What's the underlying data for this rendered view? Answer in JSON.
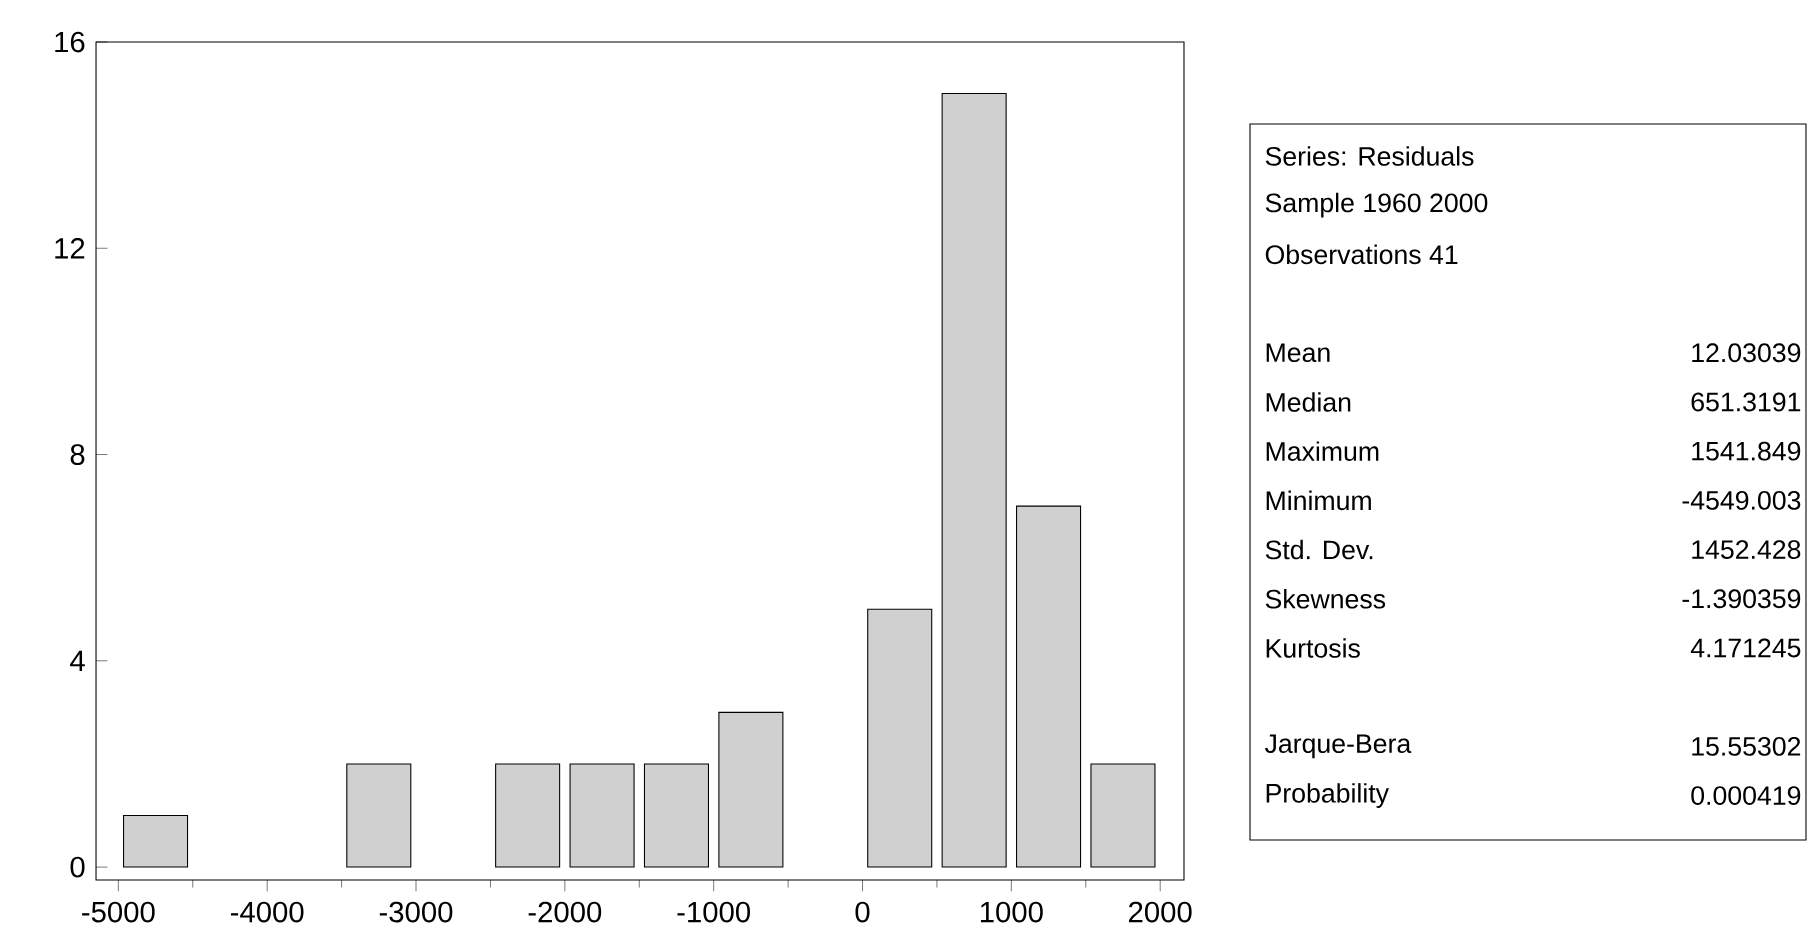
{
  "chart_data": {
    "type": "histogram",
    "bins": [
      -5000,
      -4500,
      -4000,
      -3500,
      -3000,
      -2500,
      -2000,
      -1500,
      -1000,
      -500,
      0,
      500,
      1000,
      1500,
      2000
    ],
    "values": [
      1,
      0,
      0,
      2,
      0,
      2,
      2,
      2,
      3,
      0,
      5,
      15,
      7,
      2
    ],
    "color": "#d0d0d0",
    "xlim": [
      -5150,
      2160
    ],
    "ylim": [
      -0.25,
      16
    ],
    "xticks": [
      -5000,
      -4000,
      -3000,
      -2000,
      -1000,
      0,
      1000,
      2000
    ],
    "yticks": [
      0,
      4,
      8,
      12,
      16
    ],
    "grid": false,
    "annotations": [
      "Series: Residuals",
      "Sample 1960 2000",
      "Observations 41",
      "Mean",
      "12.03039",
      "Median",
      "651.3191",
      "Maximum",
      "1541.849",
      "Minimum",
      "-4549.003",
      "Std. Dev.",
      "1452.428",
      "Skewness",
      "-1.390359",
      "Kurtosis",
      "4.171245",
      "Jarque-Bera",
      "15.55302",
      "Probability",
      "0.000419"
    ]
  }
}
